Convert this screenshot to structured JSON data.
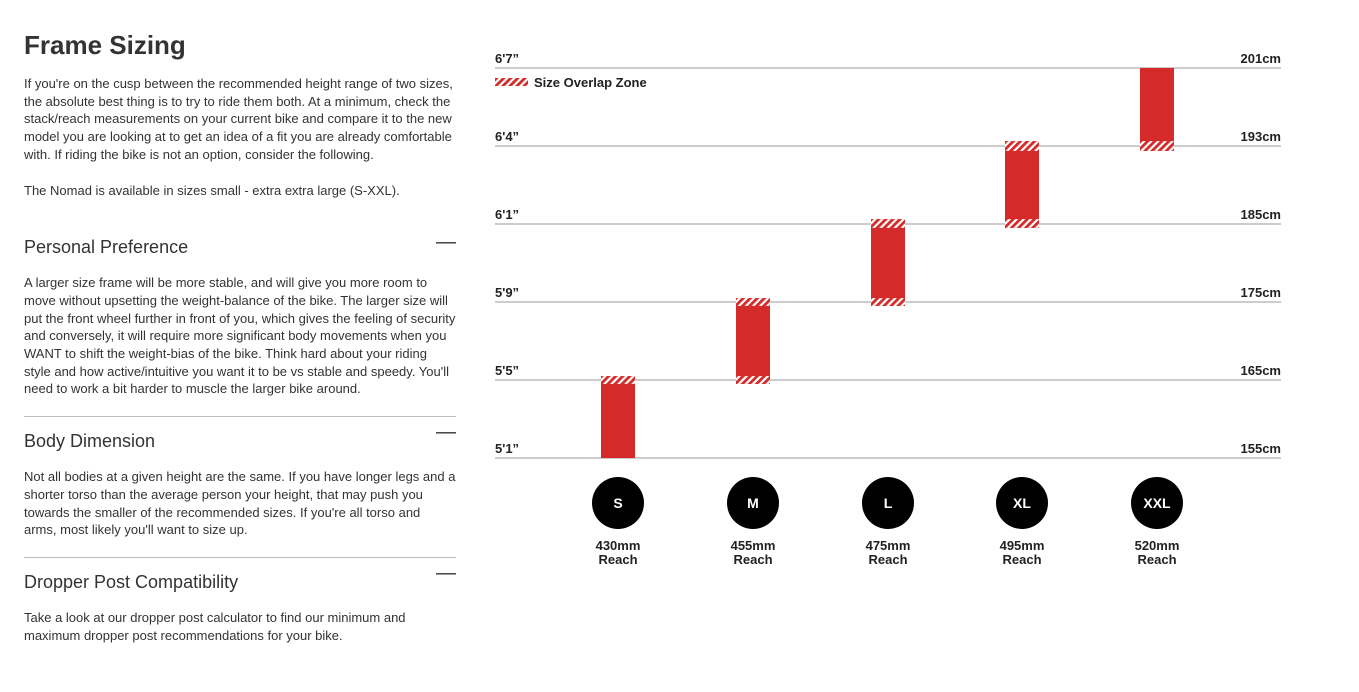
{
  "page": {
    "title": "Frame Sizing",
    "intro": [
      "If you're on the cusp between the recommended height range of two sizes, the absolute best thing is to try to ride them both. At a minimum, check the stack/reach measurements on your current bike and compare it to the new model you are looking at to get an idea of a fit you are already comfortable with. If riding the bike is not an option, consider the following.",
      "The Nomad is available in sizes small - extra extra large (S-XXL)."
    ],
    "sections": [
      {
        "title": "Personal Preference",
        "body": "A larger size frame will be more stable, and will give you more room to move without upsetting the weight-balance of the bike. The larger size will put the front wheel further in front of you, which gives the feeling of security and conversely, it will require more significant body movements when you WANT to shift the weight-bias of the bike. Think hard about your riding style and how active/intuitive you want it to be vs stable and speedy. You'll need to work a bit harder to muscle the larger bike around."
      },
      {
        "title": "Body Dimension",
        "body": "Not all bodies at a given height are the same. If you have longer legs and a shorter torso than the average person your height, that may push you towards the smaller of the recommended sizes. If you're all torso and arms, most likely you'll want to size up."
      },
      {
        "title": "Dropper Post Compatibility",
        "body": "Take a look at our dropper post calculator to find our minimum and maximum dropper post recommendations for your bike."
      }
    ]
  },
  "chart_data": {
    "type": "range",
    "categories": [
      "S",
      "M",
      "L",
      "XL",
      "XXL"
    ],
    "low": [
      155,
      164.5,
      174.5,
      184.5,
      192.5
    ],
    "high": [
      165.5,
      175.5,
      185.5,
      193.5,
      201
    ],
    "color": "#d42a2a",
    "overlap_label": "Size Overlap Zone",
    "reach": [
      "430mm",
      "455mm",
      "475mm",
      "495mm",
      "520mm"
    ],
    "reach_label": "Reach",
    "ylim": [
      155,
      201
    ],
    "yticks": [
      {
        "value": 155,
        "label": "5'1”"
      },
      {
        "value": 165,
        "label": "5'5”"
      },
      {
        "value": 175,
        "label": "5'9”"
      },
      {
        "value": 185,
        "label": "6'1”"
      },
      {
        "value": 193,
        "label": "6'4”"
      },
      {
        "value": 201,
        "label": "6'7”"
      }
    ],
    "y2lim": [
      155,
      201
    ],
    "y2ticks": [
      {
        "value": 155,
        "label": "155cm"
      },
      {
        "value": 165,
        "label": "165cm"
      },
      {
        "value": 175,
        "label": "175cm"
      },
      {
        "value": 185,
        "label": "185cm"
      },
      {
        "value": 193,
        "label": "193cm"
      },
      {
        "value": 201,
        "label": "201cm"
      }
    ]
  }
}
